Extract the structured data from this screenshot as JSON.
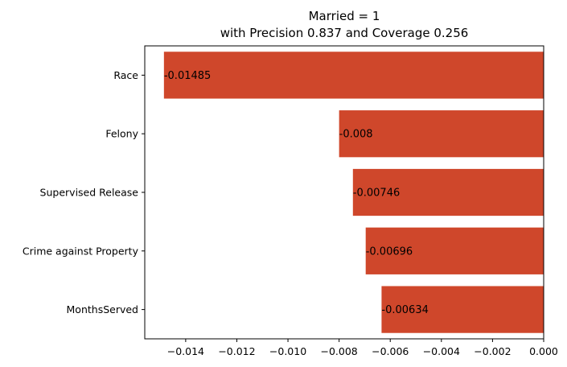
{
  "chart_data": {
    "type": "bar",
    "orientation": "horizontal",
    "title": "Married = 1",
    "subtitle": "with Precision 0.837 and Coverage 0.256",
    "xlabel": "",
    "ylabel": "",
    "categories": [
      "Race",
      "Felony",
      "Supervised Release",
      "Crime against Property",
      "MonthsServed"
    ],
    "values": [
      -0.01485,
      -0.008,
      -0.00746,
      -0.00696,
      -0.00634
    ],
    "data_labels": [
      "-0.01485",
      "-0.008",
      "-0.00746",
      "-0.00696",
      "-0.00634"
    ],
    "xlim": [
      -0.0156,
      0.0
    ],
    "x_ticks": [
      -0.014,
      -0.012,
      -0.01,
      -0.008,
      -0.006,
      -0.004,
      -0.002,
      0.0
    ],
    "x_tick_labels": [
      "−0.014",
      "−0.012",
      "−0.010",
      "−0.008",
      "−0.006",
      "−0.004",
      "−0.002",
      "0.000"
    ],
    "grid": false,
    "legend": "none",
    "bar_color": "#cf472b"
  }
}
